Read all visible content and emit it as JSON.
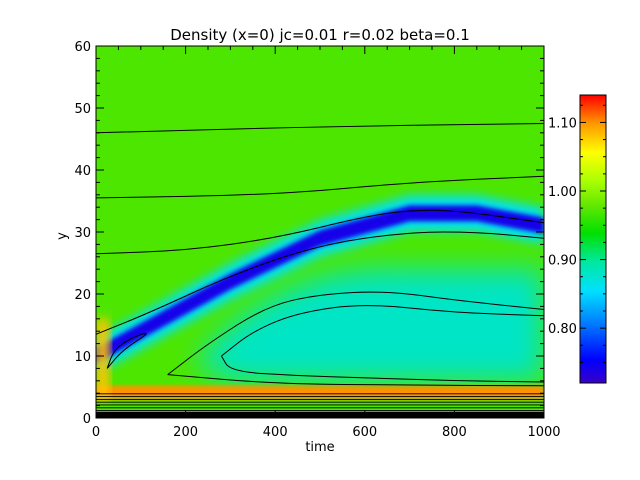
{
  "chart_data": {
    "type": "heatmap",
    "title": "Density (x=0) jc=0.01 r=0.02 beta=0.1",
    "xlabel": "time",
    "ylabel": "y",
    "xlim": [
      0,
      1000
    ],
    "ylim": [
      0,
      60
    ],
    "xticks": [
      0,
      200,
      400,
      600,
      800,
      1000
    ],
    "xtick_labels": [
      "0",
      "200",
      "400",
      "600",
      "800",
      "1000"
    ],
    "yticks": [
      0,
      10,
      20,
      30,
      40,
      50,
      60
    ],
    "ytick_labels": [
      "0",
      "10",
      "20",
      "30",
      "40",
      "50",
      "60"
    ],
    "background_value": 0.97,
    "colorbar": {
      "min": 0.72,
      "max": 1.14,
      "ticks": [
        0.8,
        0.9,
        1.0,
        1.1
      ],
      "tick_labels": [
        "0.80",
        "0.90",
        "1.00",
        "1.10"
      ],
      "colormap": "rainbow (blue-low, red-high)"
    },
    "features": [
      {
        "name": "low-density band",
        "value": 0.74,
        "path": [
          [
            0,
            10
          ],
          [
            100,
            14
          ],
          [
            300,
            22
          ],
          [
            500,
            29
          ],
          [
            700,
            33
          ],
          [
            850,
            33
          ],
          [
            1000,
            31
          ]
        ]
      },
      {
        "name": "inner region",
        "value": 0.88,
        "center": [
          600,
          14
        ]
      },
      {
        "name": "high-density layer",
        "value": 1.1,
        "path": [
          [
            0,
            4
          ],
          [
            1000,
            4
          ]
        ]
      }
    ],
    "contours": [
      {
        "points": [
          [
            0,
            46
          ],
          [
            500,
            47
          ],
          [
            1000,
            47.5
          ]
        ]
      },
      {
        "points": [
          [
            0,
            35.5
          ],
          [
            400,
            36
          ],
          [
            700,
            38
          ],
          [
            1000,
            39
          ]
        ]
      },
      {
        "points": [
          [
            0,
            26.5
          ],
          [
            200,
            27
          ],
          [
            400,
            29
          ],
          [
            600,
            32.5
          ],
          [
            700,
            33.5
          ],
          [
            800,
            33.5
          ],
          [
            1000,
            31.5
          ]
        ]
      },
      {
        "points": [
          [
            0,
            13.5
          ],
          [
            120,
            17
          ],
          [
            300,
            23
          ],
          [
            500,
            28
          ],
          [
            700,
            30
          ],
          [
            850,
            30
          ],
          [
            1000,
            29
          ]
        ]
      },
      {
        "points": [
          [
            25,
            8
          ],
          [
            60,
            11
          ],
          [
            125,
            14
          ],
          [
            80,
            13
          ],
          [
            40,
            11
          ],
          [
            25,
            8
          ]
        ]
      },
      {
        "points": [
          [
            160,
            7
          ],
          [
            400,
            5.5
          ],
          [
            700,
            5.3
          ],
          [
            1000,
            5.2
          ]
        ]
      },
      {
        "points": [
          [
            160,
            7
          ],
          [
            250,
            12
          ],
          [
            380,
            18
          ],
          [
            500,
            20
          ],
          [
            650,
            20.5
          ],
          [
            800,
            19
          ],
          [
            1000,
            17.5
          ]
        ]
      },
      {
        "points": [
          [
            280,
            10
          ],
          [
            300,
            7.5
          ],
          [
            450,
            6.8
          ],
          [
            600,
            6.5
          ],
          [
            800,
            6
          ],
          [
            1000,
            5.8
          ]
        ]
      },
      {
        "points": [
          [
            280,
            10
          ],
          [
            350,
            14
          ],
          [
            450,
            17
          ],
          [
            600,
            18.5
          ],
          [
            800,
            17
          ],
          [
            1000,
            16.5
          ]
        ]
      }
    ]
  }
}
